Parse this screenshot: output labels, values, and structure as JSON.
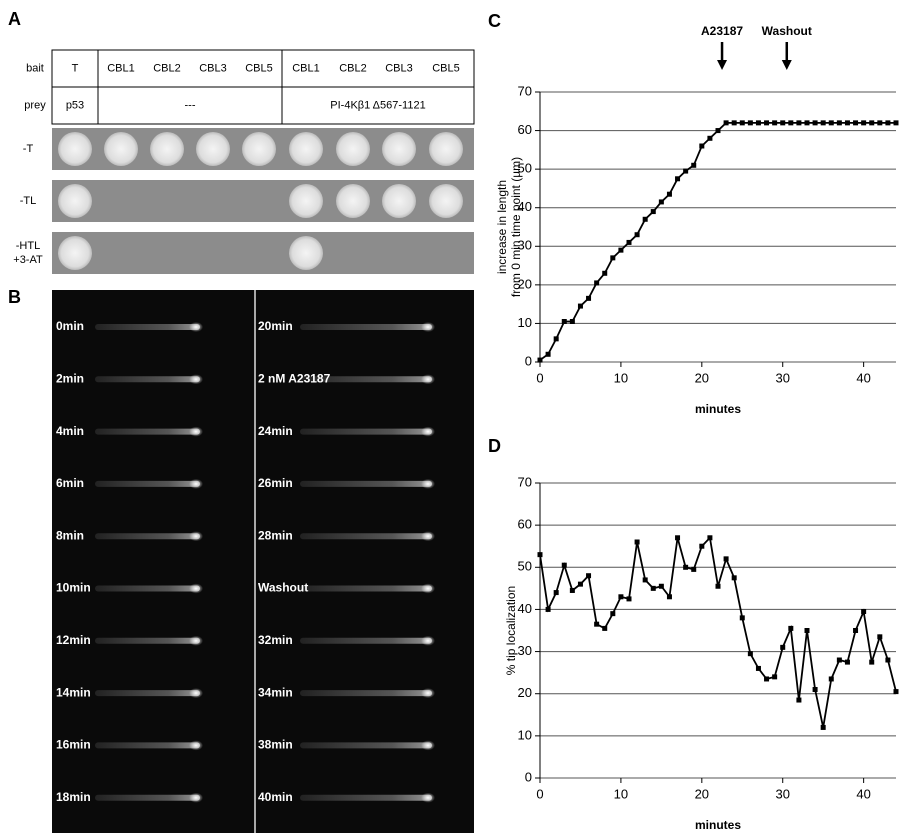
{
  "panel_a": {
    "letter": "A",
    "row_headers": [
      "bait",
      "prey"
    ],
    "bait": [
      "T",
      "CBL1",
      "CBL2",
      "CBL3",
      "CBL5",
      "CBL1",
      "CBL2",
      "CBL3",
      "CBL5"
    ],
    "prey": [
      "p53",
      "---",
      "PI-4Kβ1 Δ567-1121"
    ],
    "conditions": [
      [
        "-T"
      ],
      [
        "-TL"
      ],
      [
        "-HTL",
        "+3-AT"
      ]
    ]
  },
  "panel_b": {
    "letter": "B",
    "left": [
      "0min",
      "2min",
      "4min",
      "6min",
      "8min",
      "10min",
      "12min",
      "14min",
      "16min",
      "18min"
    ],
    "right": [
      "20min",
      "2 nM A23187",
      "24min",
      "26min",
      "28min",
      "Washout",
      "32min",
      "34min",
      "38min",
      "40min"
    ]
  },
  "chart_data": [
    {
      "type": "line",
      "letter": "C",
      "xlabel": "minutes",
      "ylabel": [
        "increase in length",
        "from 0 min time point (µm)"
      ],
      "x": [
        0,
        1,
        2,
        3,
        4,
        5,
        6,
        7,
        8,
        9,
        10,
        11,
        12,
        13,
        14,
        15,
        16,
        17,
        18,
        19,
        20,
        21,
        22,
        23,
        24,
        25,
        26,
        27,
        28,
        29,
        30,
        31,
        32,
        33,
        34,
        35,
        36,
        37,
        38,
        39,
        40,
        41,
        42,
        43,
        44
      ],
      "series": [
        {
          "color": "#000000",
          "values": [
            0.5,
            2,
            6,
            10.5,
            10.5,
            14.5,
            16.5,
            20.5,
            23,
            27,
            29,
            31,
            33,
            37,
            39,
            41.5,
            43.5,
            47.5,
            49.5,
            51,
            56,
            58,
            60,
            62,
            62,
            62,
            62,
            62,
            62,
            62,
            62,
            62,
            62,
            62,
            62,
            62,
            62,
            62,
            62,
            62,
            62,
            62,
            62,
            62,
            62
          ]
        }
      ],
      "xlim": [
        0,
        44
      ],
      "ylim": [
        0,
        70
      ],
      "xticks": [
        0,
        10,
        20,
        30,
        40
      ],
      "yticks": [
        0,
        10,
        20,
        30,
        40,
        50,
        60,
        70
      ],
      "grid": true,
      "annotations": [
        {
          "text": "A23187",
          "x": 22.5
        },
        {
          "text": "Washout",
          "x": 30.5
        }
      ]
    },
    {
      "type": "line",
      "letter": "D",
      "xlabel": "minutes",
      "ylabel": [
        "% tip localization"
      ],
      "x": [
        0,
        1,
        2,
        3,
        4,
        5,
        6,
        7,
        8,
        9,
        10,
        11,
        12,
        13,
        14,
        15,
        16,
        17,
        18,
        19,
        20,
        21,
        22,
        23,
        24,
        25,
        26,
        27,
        28,
        29,
        30,
        31,
        32,
        33,
        34,
        35,
        36,
        37,
        38,
        39,
        40,
        41,
        42,
        43,
        44
      ],
      "series": [
        {
          "color": "#000000",
          "values": [
            53,
            40,
            44,
            50.5,
            44.5,
            46,
            48,
            36.5,
            35.5,
            39,
            43,
            42.5,
            56,
            47,
            45,
            45.5,
            43,
            57,
            50,
            49.5,
            55,
            57,
            45.5,
            52,
            47.5,
            38,
            29.5,
            26,
            23.5,
            24,
            31,
            35.5,
            18.5,
            35,
            21,
            12,
            23.5,
            28,
            27.5,
            35,
            39.5,
            27.5,
            33.5,
            28,
            20.5
          ]
        }
      ],
      "xlim": [
        0,
        44
      ],
      "ylim": [
        0,
        70
      ],
      "xticks": [
        0,
        10,
        20,
        30,
        40
      ],
      "yticks": [
        0,
        10,
        20,
        30,
        40,
        50,
        60,
        70
      ],
      "grid": true
    }
  ]
}
